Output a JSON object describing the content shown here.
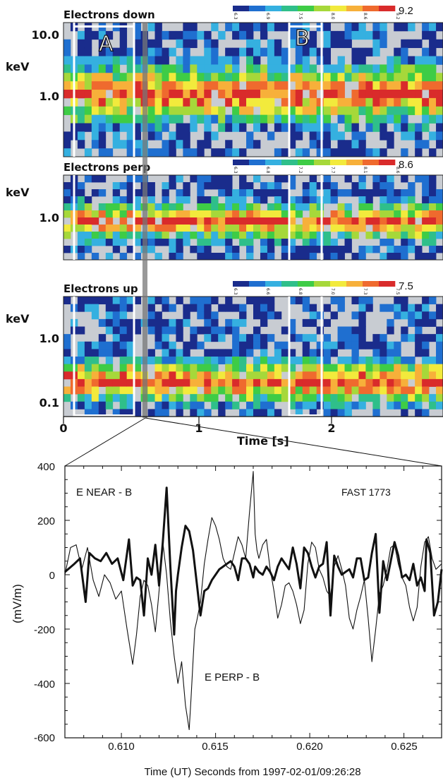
{
  "chart_data": [
    {
      "type": "heatmap",
      "title": "Electrons down",
      "ylabel": "keV",
      "y_ticks": [
        "10.0",
        "1.0"
      ],
      "colorbar_ticks": [
        "6.3",
        "6.9",
        "7.5",
        "8.0",
        "8.6",
        "9.2"
      ],
      "colorbar_max": "9.2",
      "boxes": [
        "A",
        "B"
      ],
      "seed": 11,
      "center_row": 0.47,
      "row_spread": 0.3,
      "rows": 16,
      "cols": 54
    },
    {
      "type": "heatmap",
      "title": "Electrons perp",
      "ylabel": "keV",
      "y_ticks": [
        "1.0"
      ],
      "colorbar_ticks": [
        "6.3",
        "6.8",
        "7.2",
        "7.7",
        "8.1",
        "8.6"
      ],
      "colorbar_max": "8.6",
      "seed": 23,
      "center_row": 0.45,
      "row_spread": 0.3,
      "rows": 12,
      "cols": 54
    },
    {
      "type": "heatmap",
      "title": "Electrons up",
      "ylabel": "keV",
      "y_ticks": [
        "1.0",
        "0.1"
      ],
      "colorbar_ticks": [
        "6.3",
        "6.6",
        "6.8",
        "7.0",
        "7.3",
        "7.5"
      ],
      "colorbar_max": "7.5",
      "xlabel": "Time [s]",
      "x_ticks": [
        "0",
        "1",
        "2"
      ],
      "seed": 37,
      "center_row": 0.28,
      "row_spread": 0.26,
      "rows": 16,
      "cols": 54
    },
    {
      "type": "line",
      "xlabel": "Time (UT) Seconds from 1997-02-01/09:26:28",
      "ylabel": "(mV/m)",
      "xlim": [
        0.607,
        0.627
      ],
      "ylim": [
        -600,
        400
      ],
      "x_ticks": [
        "0.610",
        "0.615",
        "0.620",
        "0.625"
      ],
      "y_ticks": [
        "400",
        "200",
        "0",
        "-200",
        "-400",
        "-600"
      ],
      "annotations": [
        "E NEAR - B",
        "FAST 1773",
        "E PERP - B"
      ],
      "series": [
        {
          "name": "E NEAR - B",
          "style": "thick",
          "x": [
            0.607,
            0.6075,
            0.6078,
            0.6081,
            0.6083,
            0.6086,
            0.6089,
            0.6092,
            0.6095,
            0.6098,
            0.6101,
            0.6104,
            0.6106,
            0.6108,
            0.611,
            0.6112,
            0.6114,
            0.6116,
            0.6118,
            0.612,
            0.6122,
            0.6124,
            0.6126,
            0.6128,
            0.6129,
            0.613,
            0.6132,
            0.6134,
            0.6136,
            0.6138,
            0.614,
            0.6142,
            0.6144,
            0.6146,
            0.6148,
            0.615,
            0.6152,
            0.6154,
            0.6156,
            0.6158,
            0.616,
            0.6162,
            0.6164,
            0.6166,
            0.6168,
            0.617,
            0.6171,
            0.6173,
            0.6175,
            0.6177,
            0.6179,
            0.6181,
            0.6183,
            0.6185,
            0.6187,
            0.6189,
            0.6191,
            0.6193,
            0.6195,
            0.6197,
            0.6199,
            0.6201,
            0.6203,
            0.6205,
            0.6207,
            0.6209,
            0.6211,
            0.6213,
            0.6215,
            0.6217,
            0.6219,
            0.6221,
            0.6223,
            0.6225,
            0.6227,
            0.6229,
            0.6231,
            0.6233,
            0.6235,
            0.6237,
            0.6239,
            0.6241,
            0.6243,
            0.6245,
            0.6247,
            0.6249,
            0.6251,
            0.6253,
            0.6255,
            0.6257,
            0.6259,
            0.6261,
            0.6262,
            0.6264,
            0.6266,
            0.6268,
            0.627
          ],
          "y": [
            10,
            40,
            60,
            -100,
            80,
            60,
            50,
            80,
            40,
            60,
            -20,
            130,
            -40,
            -10,
            -20,
            -150,
            60,
            0,
            110,
            -40,
            120,
            320,
            30,
            -220,
            -60,
            0,
            100,
            180,
            160,
            90,
            -30,
            -150,
            -60,
            -50,
            -20,
            0,
            20,
            30,
            40,
            50,
            30,
            -20,
            60,
            60,
            40,
            -10,
            30,
            10,
            0,
            30,
            10,
            -20,
            30,
            60,
            40,
            20,
            100,
            40,
            -50,
            100,
            80,
            30,
            -10,
            30,
            40,
            120,
            -150,
            70,
            30,
            0,
            10,
            20,
            -10,
            60,
            60,
            -20,
            -10,
            80,
            150,
            -140,
            50,
            -20,
            50,
            120,
            70,
            -10,
            0,
            -20,
            40,
            -40,
            -10,
            -60,
            130,
            80,
            -150,
            -100,
            20
          ]
        },
        {
          "name": "E PERP - B",
          "style": "thin",
          "x": [
            0.607,
            0.6073,
            0.6076,
            0.6079,
            0.6082,
            0.6085,
            0.6088,
            0.6091,
            0.6094,
            0.6097,
            0.61,
            0.6103,
            0.6106,
            0.6108,
            0.611,
            0.6112,
            0.6114,
            0.6116,
            0.6118,
            0.612,
            0.6122,
            0.6124,
            0.6126,
            0.6128,
            0.613,
            0.6132,
            0.6134,
            0.6136,
            0.6137,
            0.6138,
            0.6139,
            0.614,
            0.6142,
            0.6144,
            0.6146,
            0.6148,
            0.615,
            0.6152,
            0.6154,
            0.6156,
            0.6158,
            0.616,
            0.6162,
            0.6164,
            0.6166,
            0.6168,
            0.617,
            0.6171,
            0.6172,
            0.6173,
            0.6175,
            0.6177,
            0.6179,
            0.6181,
            0.6183,
            0.6185,
            0.6187,
            0.6189,
            0.6191,
            0.6193,
            0.6195,
            0.6197,
            0.6199,
            0.6201,
            0.6203,
            0.6205,
            0.6207,
            0.6209,
            0.6211,
            0.6213,
            0.6215,
            0.6217,
            0.6219,
            0.6221,
            0.6223,
            0.6225,
            0.6227,
            0.6229,
            0.6231,
            0.6233,
            0.6235,
            0.6237,
            0.6239,
            0.6241,
            0.6243,
            0.6245,
            0.6247,
            0.6249,
            0.6251,
            0.6253,
            0.6255,
            0.6257,
            0.6259,
            0.6261,
            0.6263,
            0.6265,
            0.6267,
            0.627
          ],
          "y": [
            0,
            100,
            110,
            20,
            100,
            -20,
            -80,
            0,
            -30,
            -90,
            -60,
            -200,
            -330,
            -220,
            -80,
            -20,
            -40,
            -110,
            -210,
            -60,
            120,
            0,
            -170,
            -300,
            -400,
            -320,
            -480,
            -570,
            -450,
            -320,
            -200,
            -170,
            -100,
            40,
            130,
            210,
            180,
            130,
            60,
            30,
            20,
            80,
            140,
            110,
            60,
            230,
            380,
            150,
            90,
            60,
            110,
            130,
            20,
            -60,
            -160,
            -110,
            -40,
            -30,
            -60,
            -110,
            -180,
            -130,
            40,
            120,
            100,
            20,
            -10,
            -60,
            -80,
            30,
            70,
            20,
            -40,
            -160,
            -200,
            -130,
            -80,
            -20,
            -160,
            -320,
            -200,
            -70,
            -40,
            20,
            100,
            110,
            40,
            -10,
            -40,
            -120,
            -170,
            -120,
            30,
            120,
            140,
            60,
            20,
            40
          ]
        }
      ]
    }
  ]
}
